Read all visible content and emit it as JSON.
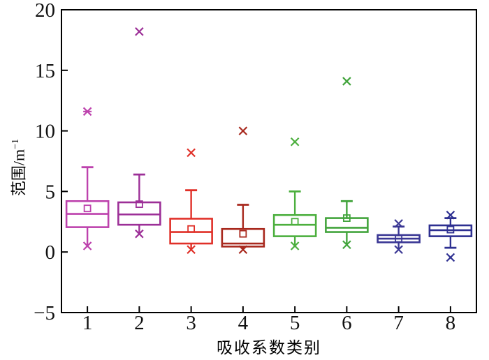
{
  "figure": {
    "background": "#ffffff",
    "axis_color": "#000000",
    "tick_label_color": "#111111"
  },
  "chart_data": {
    "type": "box",
    "title": "",
    "xlabel": "吸收系数类别",
    "ylabel": "范围/m⁻¹",
    "ylabel_base": "范围/m",
    "ylabel_sup": "−1",
    "xlim_categories": 8,
    "ylim": [
      -5,
      20
    ],
    "yticks": [
      20,
      15,
      10,
      5,
      0,
      -5
    ],
    "grid": false,
    "legend": null,
    "categories": [
      "1",
      "2",
      "3",
      "4",
      "5",
      "6",
      "7",
      "8"
    ],
    "marker_legend": {
      "open_square": "mean",
      "cross": "extreme / percentile marker",
      "cap": "whisker end"
    },
    "boxes": [
      {
        "category": "1",
        "color": "#bd42ad",
        "q1": 2.05,
        "median": 3.15,
        "q3": 4.2,
        "mean": 3.6,
        "whisker_low": 0.5,
        "whisker_high": 7.0,
        "cap_high": true,
        "cap_low": false,
        "cross_high": null,
        "cross_low": 0.5,
        "outliers": [
          11.6
        ],
        "dash_high": 11.6
      },
      {
        "category": "2",
        "color": "#9c2f97",
        "q1": 2.25,
        "median": 3.1,
        "q3": 4.1,
        "mean": 3.95,
        "whisker_low": 1.5,
        "whisker_high": 6.4,
        "cap_high": true,
        "cap_low": false,
        "cross_high": null,
        "cross_low": 1.5,
        "outliers": [
          18.2
        ],
        "dash_high": null
      },
      {
        "category": "3",
        "color": "#e03028",
        "q1": 0.7,
        "median": 1.65,
        "q3": 2.75,
        "mean": 1.9,
        "whisker_low": 0.2,
        "whisker_high": 5.1,
        "cap_high": true,
        "cap_low": false,
        "cross_high": null,
        "cross_low": 0.2,
        "outliers": [
          8.2
        ],
        "dash_high": null
      },
      {
        "category": "4",
        "color": "#a8281d",
        "q1": 0.45,
        "median": 0.7,
        "q3": 1.9,
        "mean": 1.5,
        "whisker_low": 0.2,
        "whisker_high": 3.9,
        "cap_high": true,
        "cap_low": false,
        "cross_high": null,
        "cross_low": 0.2,
        "outliers": [
          10.0
        ],
        "dash_high": null
      },
      {
        "category": "5",
        "color": "#4caf3e",
        "q1": 1.3,
        "median": 2.25,
        "q3": 3.05,
        "mean": 2.5,
        "whisker_low": 0.5,
        "whisker_high": 5.0,
        "cap_high": true,
        "cap_low": false,
        "cross_high": null,
        "cross_low": 0.5,
        "outliers": [
          9.1
        ],
        "dash_high": null
      },
      {
        "category": "6",
        "color": "#42a43c",
        "q1": 1.65,
        "median": 2.0,
        "q3": 2.8,
        "mean": 2.8,
        "whisker_low": 0.6,
        "whisker_high": 4.2,
        "cap_high": true,
        "cap_low": false,
        "cross_high": null,
        "cross_low": 0.6,
        "outliers": [
          14.1
        ],
        "dash_high": null
      },
      {
        "category": "7",
        "color": "#3a3794",
        "q1": 0.8,
        "median": 1.1,
        "q3": 1.4,
        "mean": 1.1,
        "whisker_low": 0.2,
        "whisker_high": 2.1,
        "cap_high": true,
        "cap_low": false,
        "cross_high": 2.35,
        "cross_low": 0.2,
        "outliers": [],
        "dash_high": null
      },
      {
        "category": "8",
        "color": "#2e3091",
        "q1": 1.3,
        "median": 1.8,
        "q3": 2.2,
        "mean": 1.85,
        "whisker_low": 0.35,
        "whisker_high": 2.8,
        "cap_high": true,
        "cap_low": true,
        "cross_high": 3.05,
        "cross_low": -0.45,
        "outliers": [],
        "dash_high": null
      }
    ]
  }
}
